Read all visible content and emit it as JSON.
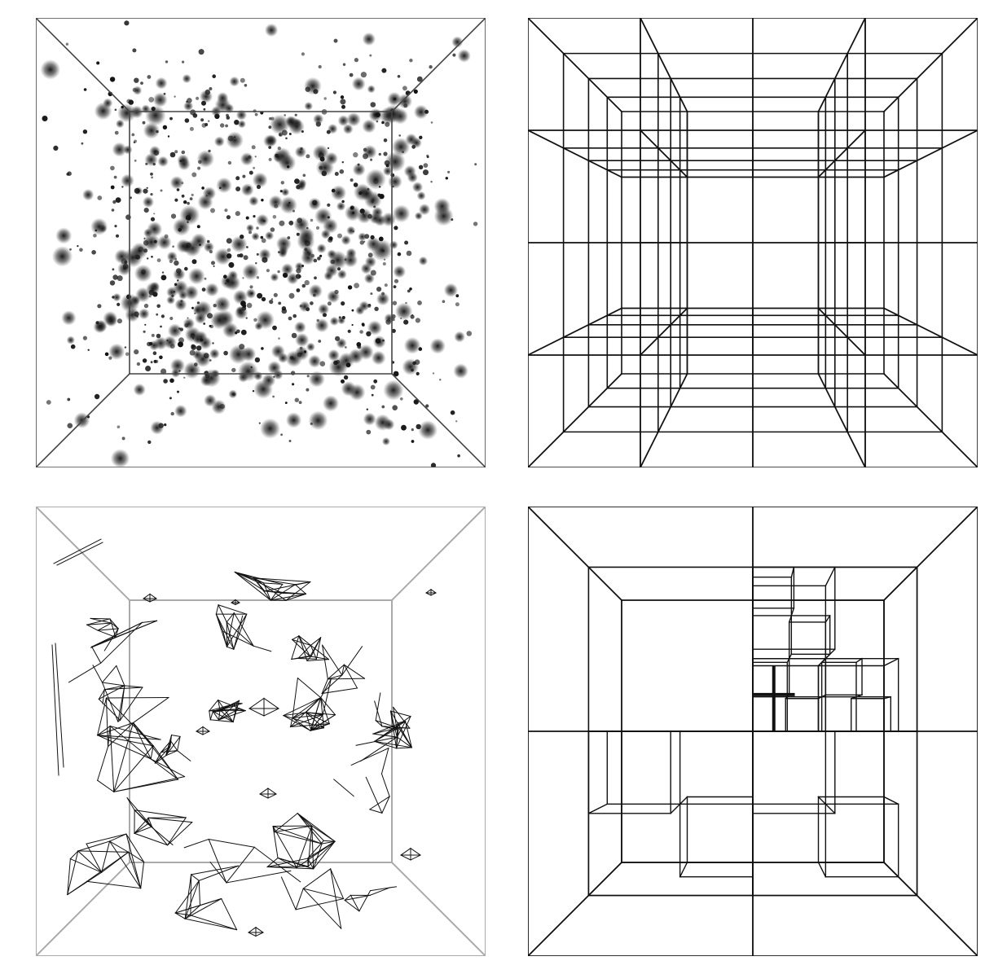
{
  "figure": {
    "panels": [
      {
        "id": "particle-cloud",
        "box_color": "#444444",
        "particle_color": "#111111",
        "particle_count": 900,
        "seed": 7
      },
      {
        "id": "uniform-octree-grid",
        "line_color": "#111111",
        "subdivision": "uniform-4x4x4"
      },
      {
        "id": "isosurface-mesh",
        "box_color": "#aaaaaa",
        "mesh_color": "#111111",
        "seed": 11
      },
      {
        "id": "adaptive-octree",
        "line_color": "#111111"
      }
    ]
  }
}
